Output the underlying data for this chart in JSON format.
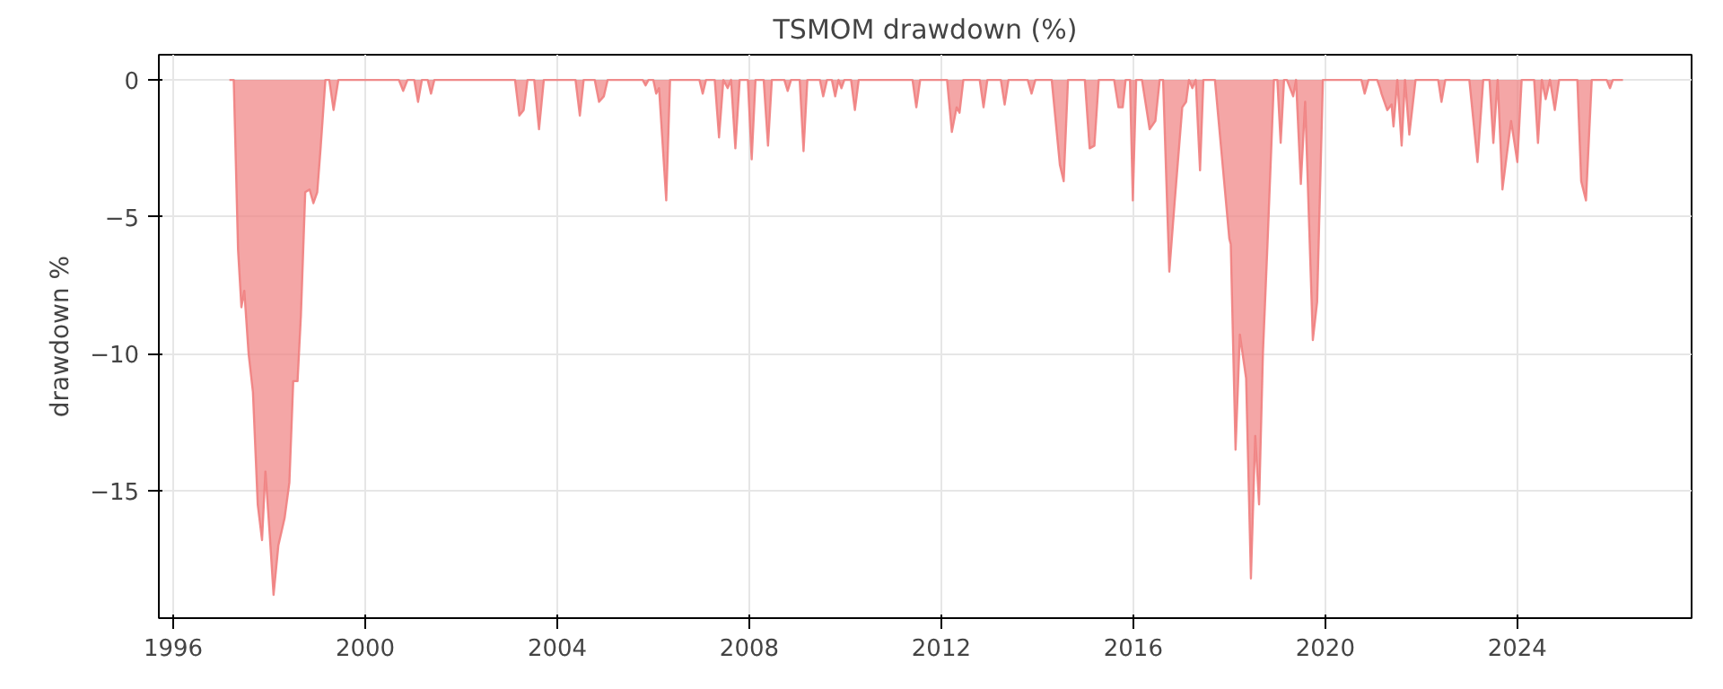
{
  "chart_data": {
    "type": "area",
    "title": "TSMOM drawdown (%)",
    "ylabel": "drawdown %",
    "xlim": [
      1995.7,
      2027.63
    ],
    "ylim": [
      -19.65,
      0.92
    ],
    "xticks": [
      {
        "value": 1996,
        "label": "1996"
      },
      {
        "value": 2000,
        "label": "2000"
      },
      {
        "value": 2004,
        "label": "2004"
      },
      {
        "value": 2008,
        "label": "2008"
      },
      {
        "value": 2012,
        "label": "2012"
      },
      {
        "value": 2016,
        "label": "2016"
      },
      {
        "value": 2020,
        "label": "2020"
      },
      {
        "value": 2024,
        "label": "2024"
      }
    ],
    "yticks": [
      {
        "value": -15,
        "label": "−15"
      },
      {
        "value": -10,
        "label": "−10"
      },
      {
        "value": -5,
        "label": "−5"
      },
      0
    ],
    "grid": true,
    "series": [
      {
        "color": "#f08080",
        "x": [
          1997.17,
          1997.26,
          1997.35,
          1997.42,
          1997.48,
          1997.57,
          1997.66,
          1997.76,
          1997.85,
          1997.92,
          1998.01,
          1998.09,
          1998.19,
          1998.32,
          1998.42,
          1998.5,
          1998.59,
          1998.66,
          1998.75,
          1998.84,
          1998.92,
          1999.0,
          1999.07,
          1999.17,
          1999.25,
          1999.34,
          1999.44,
          2000.7,
          2000.79,
          2000.88,
          2001.02,
          2001.1,
          2001.18,
          2001.3,
          2001.37,
          2001.44,
          2003.12,
          2003.21,
          2003.3,
          2003.38,
          2003.52,
          2003.62,
          2003.72,
          2004.38,
          2004.47,
          2004.55,
          2004.78,
          2004.87,
          2004.97,
          2005.05,
          2005.78,
          2005.84,
          2005.9,
          2006.0,
          2006.06,
          2006.12,
          2006.27,
          2006.35,
          2006.96,
          2007.03,
          2007.1,
          2007.28,
          2007.37,
          2007.46,
          2007.55,
          2007.62,
          2007.71,
          2007.8,
          2007.97,
          2008.05,
          2008.13,
          2008.3,
          2008.39,
          2008.47,
          2008.73,
          2008.8,
          2008.87,
          2009.05,
          2009.13,
          2009.21,
          2009.47,
          2009.54,
          2009.62,
          2009.72,
          2009.79,
          2009.86,
          2009.92,
          2009.98,
          2010.12,
          2010.2,
          2010.28,
          2011.4,
          2011.48,
          2011.56,
          2012.12,
          2012.22,
          2012.32,
          2012.38,
          2012.46,
          2012.8,
          2012.88,
          2012.96,
          2013.24,
          2013.32,
          2013.4,
          2013.8,
          2013.88,
          2013.96,
          2014.3,
          2014.47,
          2014.55,
          2014.64,
          2014.99,
          2015.09,
          2015.19,
          2015.28,
          2015.6,
          2015.69,
          2015.78,
          2015.84,
          2015.93,
          2015.99,
          2016.06,
          2016.18,
          2016.34,
          2016.46,
          2016.55,
          2016.62,
          2016.75,
          2016.86,
          2017.02,
          2017.1,
          2017.16,
          2017.23,
          2017.3,
          2017.39,
          2017.46,
          2017.7,
          2018.0,
          2018.03,
          2018.13,
          2018.22,
          2018.35,
          2018.45,
          2018.54,
          2018.62,
          2018.7,
          2018.8,
          2018.93,
          2019.0,
          2019.07,
          2019.14,
          2019.2,
          2019.33,
          2019.39,
          2019.49,
          2019.58,
          2019.74,
          2019.83,
          2019.95,
          2020.75,
          2020.82,
          2020.9,
          2021.08,
          2021.14,
          2021.17,
          2021.29,
          2021.38,
          2021.42,
          2021.5,
          2021.59,
          2021.66,
          2021.75,
          2021.88,
          2022.35,
          2022.42,
          2022.5,
          2023.0,
          2023.17,
          2023.29,
          2023.42,
          2023.5,
          2023.59,
          2023.69,
          2023.87,
          2024.0,
          2024.09,
          2024.35,
          2024.43,
          2024.51,
          2024.59,
          2024.68,
          2024.78,
          2024.87,
          2025.25,
          2025.33,
          2025.43,
          2025.55,
          2025.86,
          2025.93,
          2025.99,
          2026.2
        ],
        "values": [
          0,
          0,
          -6.2,
          -8.3,
          -7.7,
          -10,
          -11.4,
          -15.5,
          -16.8,
          -14.3,
          -16.6,
          -18.8,
          -17.0,
          -16.0,
          -14.7,
          -11.0,
          -11.0,
          -8.6,
          -4.1,
          -4.0,
          -4.5,
          -4.1,
          -2.5,
          0,
          0,
          -1.1,
          0,
          0,
          -0.4,
          0,
          0,
          -0.8,
          0,
          0,
          -0.5,
          0,
          0,
          -1.3,
          -1.1,
          0,
          0,
          -1.8,
          0,
          0,
          -1.3,
          0,
          0,
          -0.8,
          -0.6,
          0,
          0,
          -0.2,
          0,
          0,
          -0.5,
          -0.3,
          -4.4,
          0,
          0,
          -0.5,
          0,
          0,
          -2.1,
          0,
          -0.3,
          0,
          -2.5,
          0,
          0,
          -2.9,
          0,
          0,
          -2.4,
          0,
          0,
          -0.4,
          0,
          0,
          -2.6,
          0,
          0,
          -0.6,
          0,
          0,
          -0.6,
          0,
          -0.3,
          0,
          0,
          -1.1,
          0,
          0,
          -1.0,
          0,
          0,
          -1.9,
          -1.0,
          -1.2,
          0,
          0,
          -1.0,
          0,
          0,
          -0.9,
          0,
          0,
          -0.5,
          0,
          0,
          -3.1,
          -3.7,
          0,
          0,
          -2.5,
          -2.4,
          0,
          0,
          -1.0,
          -1.0,
          0,
          0,
          -4.4,
          0,
          0,
          -1.8,
          -1.5,
          0,
          0,
          -7.0,
          -4.5,
          -1.0,
          -0.8,
          0,
          -0.3,
          0,
          -3.3,
          0,
          0,
          -5.8,
          -6.0,
          -13.5,
          -9.3,
          -10.9,
          -18.2,
          -13.0,
          -15.5,
          -10,
          -5.8,
          0,
          0,
          -2.3,
          0,
          0,
          -0.6,
          0,
          -3.8,
          -0.8,
          -9.5,
          -8.1,
          0,
          0,
          -0.5,
          0,
          0,
          -0.3,
          -0.5,
          -1.1,
          -0.9,
          -1.7,
          0,
          -2.4,
          0,
          -2.0,
          0,
          0,
          -0.8,
          0,
          0,
          -3.0,
          0,
          0,
          -2.3,
          0,
          -4.0,
          -1.5,
          -3.0,
          0,
          0,
          -2.3,
          0,
          -0.7,
          0,
          -1.1,
          0,
          0,
          -3.7,
          -4.4,
          0,
          0,
          -0.3,
          0,
          0
        ]
      }
    ]
  }
}
